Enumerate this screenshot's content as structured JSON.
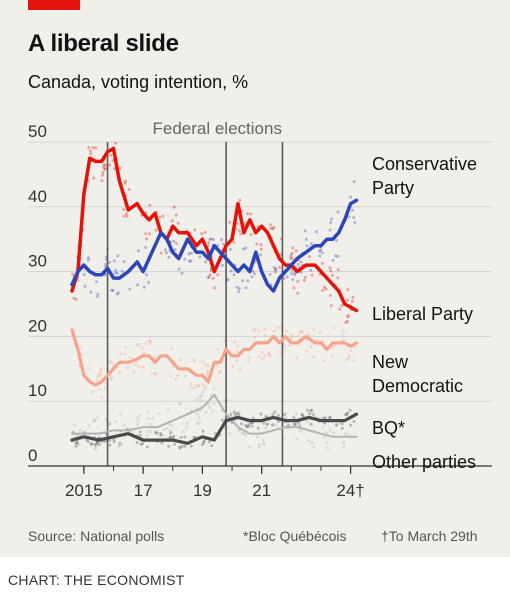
{
  "title": "A liberal slide",
  "subtitle": "Canada, voting intention, %",
  "source": "Source: National polls",
  "footnote_bq": "*Bloc Québécois",
  "footnote_date": "†To March 29th",
  "credit": "CHART: THE ECONOMIST",
  "colors": {
    "conservative": "#2e45b8",
    "liberal": "#e3120b",
    "ndp": "#f6a38e",
    "bq": "#4a4a4a",
    "other": "#b4b4b4",
    "grid": "#cfd3d6",
    "background": "#f0efe9",
    "brand": "#e3120b"
  },
  "chart_data": {
    "type": "line",
    "title": "A liberal slide",
    "subtitle": "Canada, voting intention, %",
    "ylim": [
      0,
      50
    ],
    "xlim": [
      2014.6,
      2024.25
    ],
    "y_ticks": [
      {
        "value": 0,
        "label": "0"
      },
      {
        "value": 10,
        "label": "10"
      },
      {
        "value": 20,
        "label": "20"
      },
      {
        "value": 30,
        "label": "30"
      },
      {
        "value": 40,
        "label": "40"
      },
      {
        "value": 50,
        "label": "50"
      }
    ],
    "x_ticks": [
      {
        "value": 2015,
        "label": "2015"
      },
      {
        "value": 2017,
        "label": "17"
      },
      {
        "value": 2019,
        "label": "19"
      },
      {
        "value": 2021,
        "label": "21"
      },
      {
        "value": 2024,
        "label": "24†"
      }
    ],
    "events": {
      "label": "Federal elections",
      "dates": [
        2015.8,
        2019.8,
        2021.7
      ]
    },
    "series": [
      {
        "name": "Conservative Party",
        "key": "conservative",
        "x": [
          2014.6,
          2014.8,
          2015.0,
          2015.2,
          2015.4,
          2015.6,
          2015.8,
          2016.0,
          2016.2,
          2016.5,
          2016.8,
          2017.0,
          2017.2,
          2017.4,
          2017.6,
          2017.8,
          2018.0,
          2018.2,
          2018.5,
          2018.8,
          2019.0,
          2019.2,
          2019.4,
          2019.6,
          2019.8,
          2020.0,
          2020.2,
          2020.4,
          2020.6,
          2020.8,
          2021.0,
          2021.2,
          2021.4,
          2021.6,
          2021.8,
          2022.0,
          2022.2,
          2022.5,
          2022.8,
          2023.0,
          2023.2,
          2023.4,
          2023.6,
          2023.8,
          2024.0,
          2024.2
        ],
        "y": [
          28,
          30,
          31,
          30,
          29.5,
          29.5,
          30.5,
          29,
          29,
          30,
          31.5,
          30,
          32,
          34,
          36,
          35,
          33,
          32,
          35,
          33,
          33,
          32,
          34,
          33,
          32,
          31,
          30,
          31,
          30,
          33,
          30,
          28,
          27,
          29,
          30,
          31,
          32,
          33,
          34,
          34,
          35,
          35,
          36,
          38,
          40.5,
          41
        ]
      },
      {
        "name": "Liberal Party",
        "key": "liberal",
        "x": [
          2014.6,
          2014.8,
          2015.0,
          2015.2,
          2015.4,
          2015.6,
          2015.8,
          2016.0,
          2016.2,
          2016.5,
          2016.8,
          2017.0,
          2017.2,
          2017.4,
          2017.6,
          2017.8,
          2018.0,
          2018.2,
          2018.5,
          2018.8,
          2019.0,
          2019.2,
          2019.4,
          2019.6,
          2019.8,
          2020.0,
          2020.2,
          2020.4,
          2020.6,
          2020.8,
          2021.0,
          2021.2,
          2021.4,
          2021.6,
          2021.8,
          2022.0,
          2022.2,
          2022.5,
          2022.8,
          2023.0,
          2023.2,
          2023.4,
          2023.6,
          2023.8,
          2024.0,
          2024.2
        ],
        "y": [
          27,
          30,
          42,
          47.5,
          47,
          47,
          48.5,
          49,
          44,
          39.5,
          40.5,
          39,
          38,
          39,
          36,
          35,
          37,
          36,
          36,
          34,
          35,
          33,
          30,
          32,
          34,
          35,
          40.5,
          36,
          38,
          36,
          37,
          36,
          34,
          32,
          31,
          31,
          30,
          31,
          31,
          30,
          29,
          28,
          27,
          25,
          24.5,
          24
        ]
      },
      {
        "name": "New Democratic",
        "key": "ndp",
        "x": [
          2014.6,
          2014.8,
          2015.0,
          2015.2,
          2015.4,
          2015.6,
          2015.8,
          2016.0,
          2016.2,
          2016.5,
          2016.8,
          2017.0,
          2017.2,
          2017.4,
          2017.6,
          2017.8,
          2018.0,
          2018.2,
          2018.5,
          2018.8,
          2019.0,
          2019.2,
          2019.4,
          2019.6,
          2019.8,
          2020.0,
          2020.2,
          2020.4,
          2020.6,
          2020.8,
          2021.0,
          2021.2,
          2021.4,
          2021.6,
          2021.8,
          2022.0,
          2022.2,
          2022.5,
          2022.8,
          2023.0,
          2023.2,
          2023.4,
          2023.6,
          2023.8,
          2024.0,
          2024.2
        ],
        "y": [
          21,
          18,
          14,
          13,
          12.5,
          13,
          14,
          15,
          16,
          16,
          16.5,
          17,
          17,
          16,
          17,
          17,
          16,
          15,
          15,
          14,
          14,
          13,
          16,
          16,
          18,
          17,
          17,
          18,
          18,
          19,
          19,
          19,
          20,
          19,
          20,
          19,
          19,
          20,
          19,
          19,
          18,
          19,
          19,
          19,
          18.5,
          19
        ]
      },
      {
        "name": "BQ*",
        "key": "bq",
        "x": [
          2014.6,
          2015.0,
          2015.5,
          2016.0,
          2016.5,
          2017.0,
          2017.5,
          2018.0,
          2018.5,
          2019.0,
          2019.4,
          2019.8,
          2020.2,
          2020.6,
          2021.0,
          2021.4,
          2021.8,
          2022.2,
          2022.6,
          2023.0,
          2023.4,
          2023.8,
          2024.2
        ],
        "y": [
          4,
          4.5,
          4,
          4.5,
          5,
          4,
          4,
          4,
          3.5,
          4.5,
          4,
          7,
          7.5,
          7,
          7,
          7.5,
          7,
          7,
          7.5,
          7,
          7,
          7,
          8
        ]
      },
      {
        "name": "Other parties",
        "key": "other",
        "x": [
          2014.6,
          2015.0,
          2015.5,
          2016.0,
          2016.5,
          2017.0,
          2017.5,
          2018.0,
          2018.5,
          2019.0,
          2019.4,
          2019.8,
          2020.2,
          2020.6,
          2021.0,
          2021.4,
          2021.8,
          2022.2,
          2022.6,
          2023.0,
          2023.4,
          2023.8,
          2024.2
        ],
        "y": [
          5,
          5,
          5,
          5.5,
          5.5,
          6,
          6,
          7,
          8,
          9,
          11,
          8,
          6,
          5,
          5,
          5.5,
          6,
          6,
          5.5,
          5,
          4.5,
          4.5,
          4.5
        ]
      }
    ],
    "labels": [
      {
        "key": "conservative",
        "lines": [
          "Conservative",
          "Party"
        ]
      },
      {
        "key": "liberal",
        "lines": [
          "Liberal Party"
        ]
      },
      {
        "key": "ndp",
        "lines": [
          "New",
          "Democratic"
        ]
      },
      {
        "key": "bq",
        "lines": [
          "BQ*"
        ]
      },
      {
        "key": "other",
        "lines": [
          "Other parties"
        ]
      }
    ]
  }
}
